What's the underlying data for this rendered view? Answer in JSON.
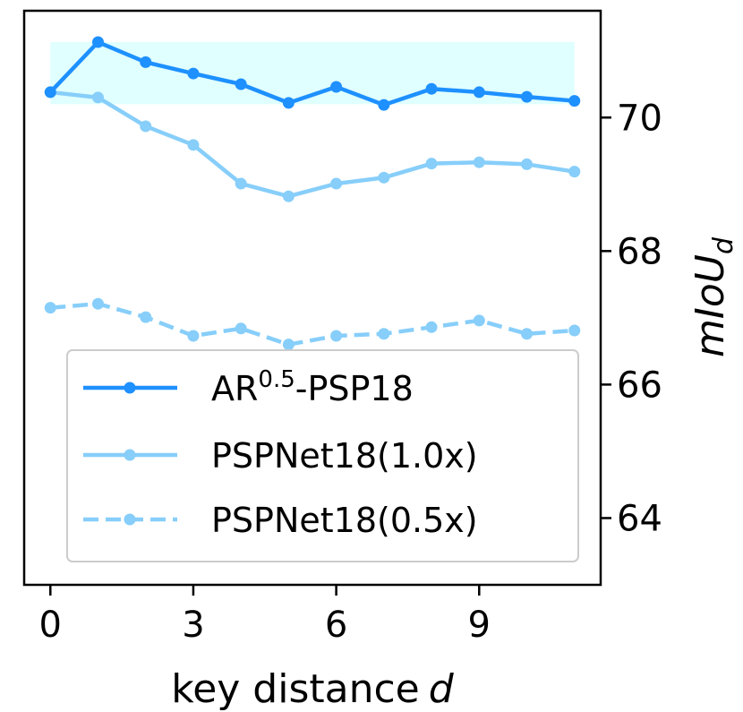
{
  "chart_data": {
    "type": "line",
    "title": "",
    "xlabel": "key distance",
    "xlabel_var": "d",
    "ylabel": "mIoU",
    "ylabel_sub": "d",
    "y_axis_side": "right",
    "xlim": [
      -0.55,
      11.55
    ],
    "ylim": [
      63.0,
      71.6
    ],
    "x_ticks": [
      0,
      3,
      6,
      9
    ],
    "y_ticks": [
      64,
      66,
      68,
      70
    ],
    "grid": false,
    "legend_position": "lower-center",
    "x": [
      0,
      1,
      2,
      3,
      4,
      5,
      6,
      7,
      8,
      9,
      10,
      11
    ],
    "highlight_band": {
      "y_range": [
        70.2,
        71.13
      ],
      "x_range": [
        0,
        11
      ],
      "color": "#e0ffff"
    },
    "series": [
      {
        "name": "AR",
        "name_sup": "0.5",
        "name_suffix": "-PSP18",
        "color": "#1e90ff",
        "linestyle": "solid",
        "values": [
          70.38,
          71.13,
          70.83,
          70.66,
          70.5,
          70.22,
          70.46,
          70.19,
          70.43,
          70.38,
          70.31,
          70.25
        ]
      },
      {
        "name": "PSPNet18(1.0x)",
        "color": "#87cefa",
        "linestyle": "solid",
        "values": [
          70.38,
          70.3,
          69.87,
          69.59,
          69.01,
          68.82,
          69.01,
          69.1,
          69.31,
          69.33,
          69.3,
          69.19
        ]
      },
      {
        "name": "PSPNet18(0.5x)",
        "color": "#87cefa",
        "linestyle": "dashed",
        "values": [
          67.15,
          67.21,
          67.01,
          66.73,
          66.84,
          66.6,
          66.73,
          66.76,
          66.86,
          66.96,
          66.76,
          66.81
        ]
      }
    ]
  }
}
